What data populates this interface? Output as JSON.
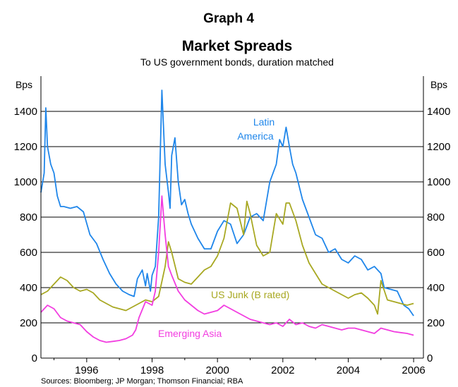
{
  "graph_label": "Graph 4",
  "source": "Sources: Bloomberg; JP Morgan; Thomson Financial; RBA",
  "colors": {
    "latin_america": "#1f86ea",
    "us_junk": "#a8a822",
    "emerging_asia": "#f23de0",
    "grid": "#000000"
  },
  "chart_data": {
    "type": "line",
    "title": "Market Spreads",
    "subtitle": "To US government bonds, duration matched",
    "ylabel_left": "Bps",
    "ylabel_right": "Bps",
    "ylim": [
      0,
      1600
    ],
    "xlim": [
      1994.6,
      2006.3
    ],
    "x_ticks": [
      "1996",
      "1998",
      "2000",
      "2002",
      "2004",
      "2006"
    ],
    "y_ticks": [
      "0",
      "200",
      "400",
      "600",
      "800",
      "1000",
      "1200",
      "1400"
    ],
    "grid": true,
    "annotations": [
      {
        "text": "Latin",
        "series": "latin_america"
      },
      {
        "text": "America",
        "series": "latin_america"
      },
      {
        "text": "US Junk (B rated)",
        "series": "us_junk"
      },
      {
        "text": "Emerging Asia",
        "series": "emerging_asia"
      }
    ],
    "series": [
      {
        "key": "latin_america",
        "x": [
          1994.6,
          1994.7,
          1994.75,
          1994.8,
          1994.9,
          1995.0,
          1995.1,
          1995.2,
          1995.3,
          1995.5,
          1995.7,
          1995.9,
          1996.1,
          1996.3,
          1996.5,
          1996.7,
          1996.9,
          1997.1,
          1997.3,
          1997.45,
          1997.55,
          1997.7,
          1997.8,
          1997.85,
          1997.95,
          1998.0,
          1998.1,
          1998.2,
          1998.3,
          1998.4,
          1998.5,
          1998.55,
          1998.6,
          1998.7,
          1998.8,
          1998.9,
          1999.0,
          1999.1,
          1999.2,
          1999.4,
          1999.6,
          1999.8,
          2000.0,
          2000.2,
          2000.4,
          2000.6,
          2000.8,
          2001.0,
          2001.2,
          2001.4,
          2001.6,
          2001.8,
          2001.9,
          2002.0,
          2002.1,
          2002.2,
          2002.3,
          2002.4,
          2002.6,
          2002.8,
          2003.0,
          2003.2,
          2003.4,
          2003.6,
          2003.8,
          2004.0,
          2004.2,
          2004.4,
          2004.6,
          2004.8,
          2005.0,
          2005.1,
          2005.3,
          2005.5,
          2005.7,
          2005.85,
          2006.0
        ],
        "values": [
          940,
          1050,
          1420,
          1200,
          1100,
          1050,
          920,
          860,
          860,
          850,
          860,
          830,
          700,
          650,
          560,
          480,
          420,
          380,
          360,
          350,
          450,
          500,
          410,
          480,
          380,
          470,
          520,
          800,
          1520,
          1100,
          940,
          850,
          1150,
          1250,
          1000,
          870,
          900,
          820,
          760,
          680,
          620,
          620,
          720,
          780,
          760,
          650,
          700,
          800,
          820,
          780,
          1000,
          1100,
          1240,
          1200,
          1310,
          1200,
          1100,
          1050,
          900,
          800,
          700,
          680,
          600,
          620,
          560,
          540,
          580,
          560,
          500,
          520,
          480,
          400,
          390,
          380,
          300,
          280,
          240
        ]
      },
      {
        "key": "us_junk",
        "x": [
          1994.6,
          1994.8,
          1995.0,
          1995.2,
          1995.4,
          1995.6,
          1995.8,
          1996.0,
          1996.2,
          1996.4,
          1996.6,
          1996.8,
          1997.0,
          1997.2,
          1997.4,
          1997.6,
          1997.8,
          1998.0,
          1998.2,
          1998.4,
          1998.5,
          1998.6,
          1998.8,
          1999.0,
          1999.2,
          1999.4,
          1999.6,
          1999.8,
          2000.0,
          2000.2,
          2000.4,
          2000.6,
          2000.8,
          2000.9,
          2001.0,
          2001.2,
          2001.4,
          2001.6,
          2001.8,
          2002.0,
          2002.1,
          2002.2,
          2002.4,
          2002.6,
          2002.8,
          2003.0,
          2003.2,
          2003.4,
          2003.6,
          2003.8,
          2004.0,
          2004.2,
          2004.4,
          2004.6,
          2004.8,
          2004.9,
          2005.0,
          2005.2,
          2005.4,
          2005.6,
          2005.8,
          2006.0
        ],
        "values": [
          360,
          380,
          420,
          460,
          440,
          400,
          380,
          390,
          370,
          330,
          310,
          290,
          280,
          270,
          290,
          310,
          330,
          320,
          350,
          520,
          660,
          600,
          450,
          430,
          420,
          460,
          500,
          520,
          580,
          680,
          880,
          850,
          700,
          890,
          820,
          640,
          580,
          600,
          820,
          760,
          880,
          880,
          780,
          640,
          540,
          480,
          420,
          400,
          380,
          360,
          340,
          360,
          370,
          340,
          300,
          250,
          440,
          330,
          320,
          310,
          300,
          310
        ]
      },
      {
        "key": "emerging_asia",
        "x": [
          1994.6,
          1994.8,
          1995.0,
          1995.2,
          1995.4,
          1995.6,
          1995.8,
          1996.0,
          1996.2,
          1996.4,
          1996.6,
          1996.8,
          1997.0,
          1997.2,
          1997.4,
          1997.5,
          1997.6,
          1997.8,
          1998.0,
          1998.1,
          1998.2,
          1998.3,
          1998.4,
          1998.5,
          1998.6,
          1998.8,
          1999.0,
          1999.2,
          1999.4,
          1999.6,
          1999.8,
          2000.0,
          2000.2,
          2000.4,
          2000.6,
          2000.8,
          2001.0,
          2001.2,
          2001.4,
          2001.6,
          2001.8,
          2002.0,
          2002.2,
          2002.4,
          2002.6,
          2002.8,
          2003.0,
          2003.2,
          2003.4,
          2003.6,
          2003.8,
          2004.0,
          2004.2,
          2004.4,
          2004.6,
          2004.8,
          2005.0,
          2005.2,
          2005.4,
          2005.6,
          2005.8,
          2006.0
        ],
        "values": [
          260,
          300,
          280,
          230,
          210,
          200,
          190,
          150,
          120,
          100,
          90,
          95,
          100,
          110,
          130,
          160,
          230,
          320,
          300,
          380,
          600,
          920,
          700,
          520,
          470,
          380,
          330,
          300,
          270,
          250,
          260,
          270,
          300,
          280,
          260,
          240,
          220,
          210,
          200,
          190,
          200,
          180,
          220,
          190,
          200,
          180,
          170,
          190,
          180,
          170,
          160,
          170,
          170,
          160,
          150,
          140,
          170,
          160,
          150,
          145,
          140,
          130
        ]
      }
    ]
  }
}
